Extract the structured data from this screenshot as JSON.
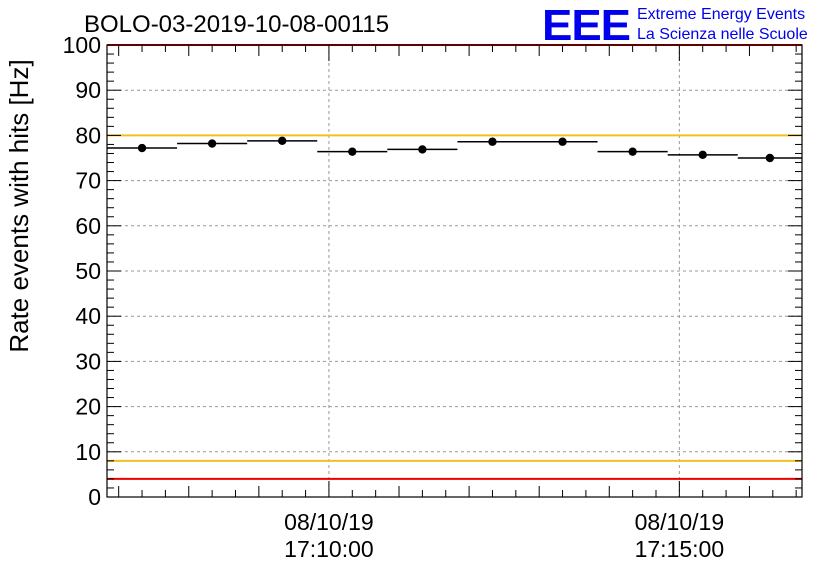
{
  "chart_data": {
    "type": "scatter",
    "title": "BOLO-03-2019-10-08-00115",
    "xlabel": "",
    "ylabel": "Rate events with hits [Hz]",
    "ylim": [
      0,
      100
    ],
    "yticks": [
      0,
      10,
      20,
      30,
      40,
      50,
      60,
      70,
      80,
      90,
      100
    ],
    "xlim": [
      "17:06:50",
      "17:16:45"
    ],
    "xtick_labels": [
      {
        "date": "08/10/19",
        "time": "17:10:00",
        "x": "17:10:00"
      },
      {
        "date": "08/10/19",
        "time": "17:15:00",
        "x": "17:15:00"
      }
    ],
    "grid": true,
    "points": [
      {
        "x_start": "17:06:50",
        "x_end": "17:07:50",
        "y": 77.2,
        "err": 0.8
      },
      {
        "x_start": "17:07:50",
        "x_end": "17:08:50",
        "y": 78.2,
        "err": 0.8
      },
      {
        "x_start": "17:08:50",
        "x_end": "17:09:50",
        "y": 78.8,
        "err": 0.8
      },
      {
        "x_start": "17:09:50",
        "x_end": "17:10:50",
        "y": 76.4,
        "err": 0.8
      },
      {
        "x_start": "17:10:50",
        "x_end": "17:11:50",
        "y": 76.9,
        "err": 0.8
      },
      {
        "x_start": "17:11:50",
        "x_end": "17:12:50",
        "y": 78.6,
        "err": 0.8
      },
      {
        "x_start": "17:12:50",
        "x_end": "17:13:50",
        "y": 78.6,
        "err": 0.8
      },
      {
        "x_start": "17:13:50",
        "x_end": "17:14:50",
        "y": 76.4,
        "err": 0.8
      },
      {
        "x_start": "17:14:50",
        "x_end": "17:15:50",
        "y": 75.7,
        "err": 0.8
      },
      {
        "x_start": "17:15:50",
        "x_end": "17:16:45",
        "y": 75.0,
        "err": 0.8
      }
    ],
    "reference_lines": [
      {
        "y": 100,
        "color": "#ee0000"
      },
      {
        "y": 80,
        "color": "#f0c020"
      },
      {
        "y": 8,
        "color": "#f0c020"
      },
      {
        "y": 4,
        "color": "#ee0000"
      }
    ]
  },
  "logo": {
    "mark": "EEE",
    "line1": "Extreme Energy Events",
    "line2": "La Scienza nelle Scuole",
    "color": "#0000ee"
  }
}
